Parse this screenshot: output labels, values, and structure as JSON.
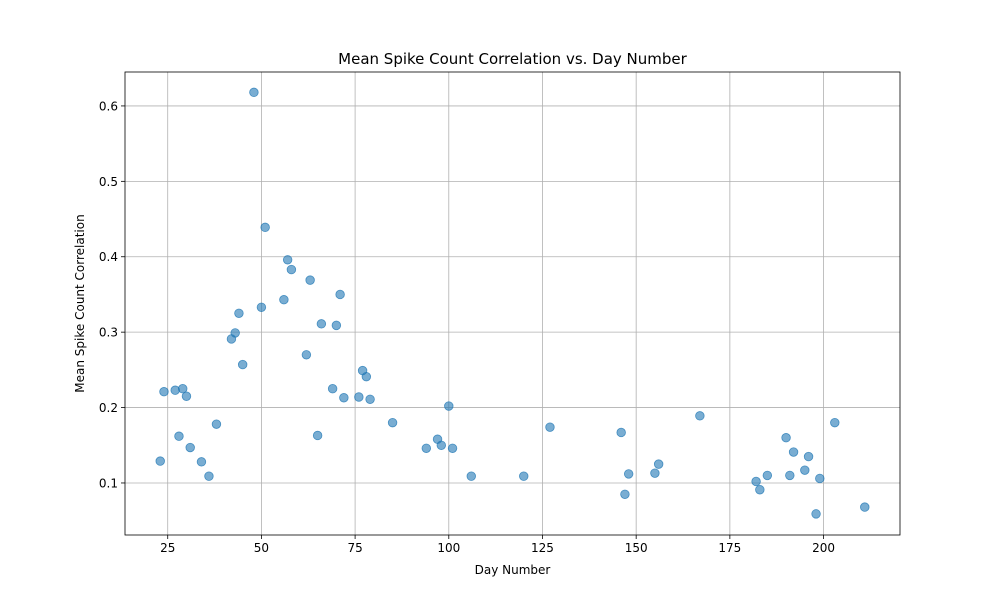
{
  "chart_data": {
    "type": "scatter",
    "title": "Mean Spike Count Correlation vs. Day Number",
    "xlabel": "Day Number",
    "ylabel": "Mean Spike Count Correlation",
    "xlim": [
      13.6,
      220.4
    ],
    "ylim": [
      0.031,
      0.645
    ],
    "xticks": [
      25,
      50,
      75,
      100,
      125,
      150,
      175,
      200
    ],
    "yticks": [
      0.1,
      0.2,
      0.3,
      0.4,
      0.5,
      0.6
    ],
    "xtick_labels": [
      "25",
      "50",
      "75",
      "100",
      "125",
      "150",
      "175",
      "200"
    ],
    "ytick_labels": [
      "0.1",
      "0.2",
      "0.3",
      "0.4",
      "0.5",
      "0.6"
    ],
    "grid": true,
    "marker_color": "#1f77b4",
    "marker_alpha": 0.6,
    "points": [
      {
        "x": 23,
        "y": 0.129
      },
      {
        "x": 24,
        "y": 0.221
      },
      {
        "x": 27,
        "y": 0.223
      },
      {
        "x": 28,
        "y": 0.162
      },
      {
        "x": 29,
        "y": 0.225
      },
      {
        "x": 30,
        "y": 0.215
      },
      {
        "x": 31,
        "y": 0.147
      },
      {
        "x": 34,
        "y": 0.128
      },
      {
        "x": 36,
        "y": 0.109
      },
      {
        "x": 38,
        "y": 0.178
      },
      {
        "x": 42,
        "y": 0.291
      },
      {
        "x": 43,
        "y": 0.299
      },
      {
        "x": 44,
        "y": 0.325
      },
      {
        "x": 45,
        "y": 0.257
      },
      {
        "x": 48,
        "y": 0.618
      },
      {
        "x": 50,
        "y": 0.333
      },
      {
        "x": 51,
        "y": 0.439
      },
      {
        "x": 56,
        "y": 0.343
      },
      {
        "x": 57,
        "y": 0.396
      },
      {
        "x": 58,
        "y": 0.383
      },
      {
        "x": 62,
        "y": 0.27
      },
      {
        "x": 63,
        "y": 0.369
      },
      {
        "x": 65,
        "y": 0.163
      },
      {
        "x": 66,
        "y": 0.311
      },
      {
        "x": 69,
        "y": 0.225
      },
      {
        "x": 70,
        "y": 0.309
      },
      {
        "x": 71,
        "y": 0.35
      },
      {
        "x": 72,
        "y": 0.213
      },
      {
        "x": 76,
        "y": 0.214
      },
      {
        "x": 77,
        "y": 0.249
      },
      {
        "x": 78,
        "y": 0.241
      },
      {
        "x": 79,
        "y": 0.211
      },
      {
        "x": 85,
        "y": 0.18
      },
      {
        "x": 94,
        "y": 0.146
      },
      {
        "x": 97,
        "y": 0.158
      },
      {
        "x": 98,
        "y": 0.15
      },
      {
        "x": 100,
        "y": 0.202
      },
      {
        "x": 101,
        "y": 0.146
      },
      {
        "x": 106,
        "y": 0.109
      },
      {
        "x": 120,
        "y": 0.109
      },
      {
        "x": 127,
        "y": 0.174
      },
      {
        "x": 146,
        "y": 0.167
      },
      {
        "x": 147,
        "y": 0.085
      },
      {
        "x": 148,
        "y": 0.112
      },
      {
        "x": 155,
        "y": 0.113
      },
      {
        "x": 156,
        "y": 0.125
      },
      {
        "x": 167,
        "y": 0.189
      },
      {
        "x": 182,
        "y": 0.102
      },
      {
        "x": 183,
        "y": 0.091
      },
      {
        "x": 185,
        "y": 0.11
      },
      {
        "x": 190,
        "y": 0.16
      },
      {
        "x": 191,
        "y": 0.11
      },
      {
        "x": 192,
        "y": 0.141
      },
      {
        "x": 195,
        "y": 0.117
      },
      {
        "x": 196,
        "y": 0.135
      },
      {
        "x": 198,
        "y": 0.059
      },
      {
        "x": 199,
        "y": 0.106
      },
      {
        "x": 203,
        "y": 0.18
      },
      {
        "x": 211,
        "y": 0.068
      }
    ]
  }
}
